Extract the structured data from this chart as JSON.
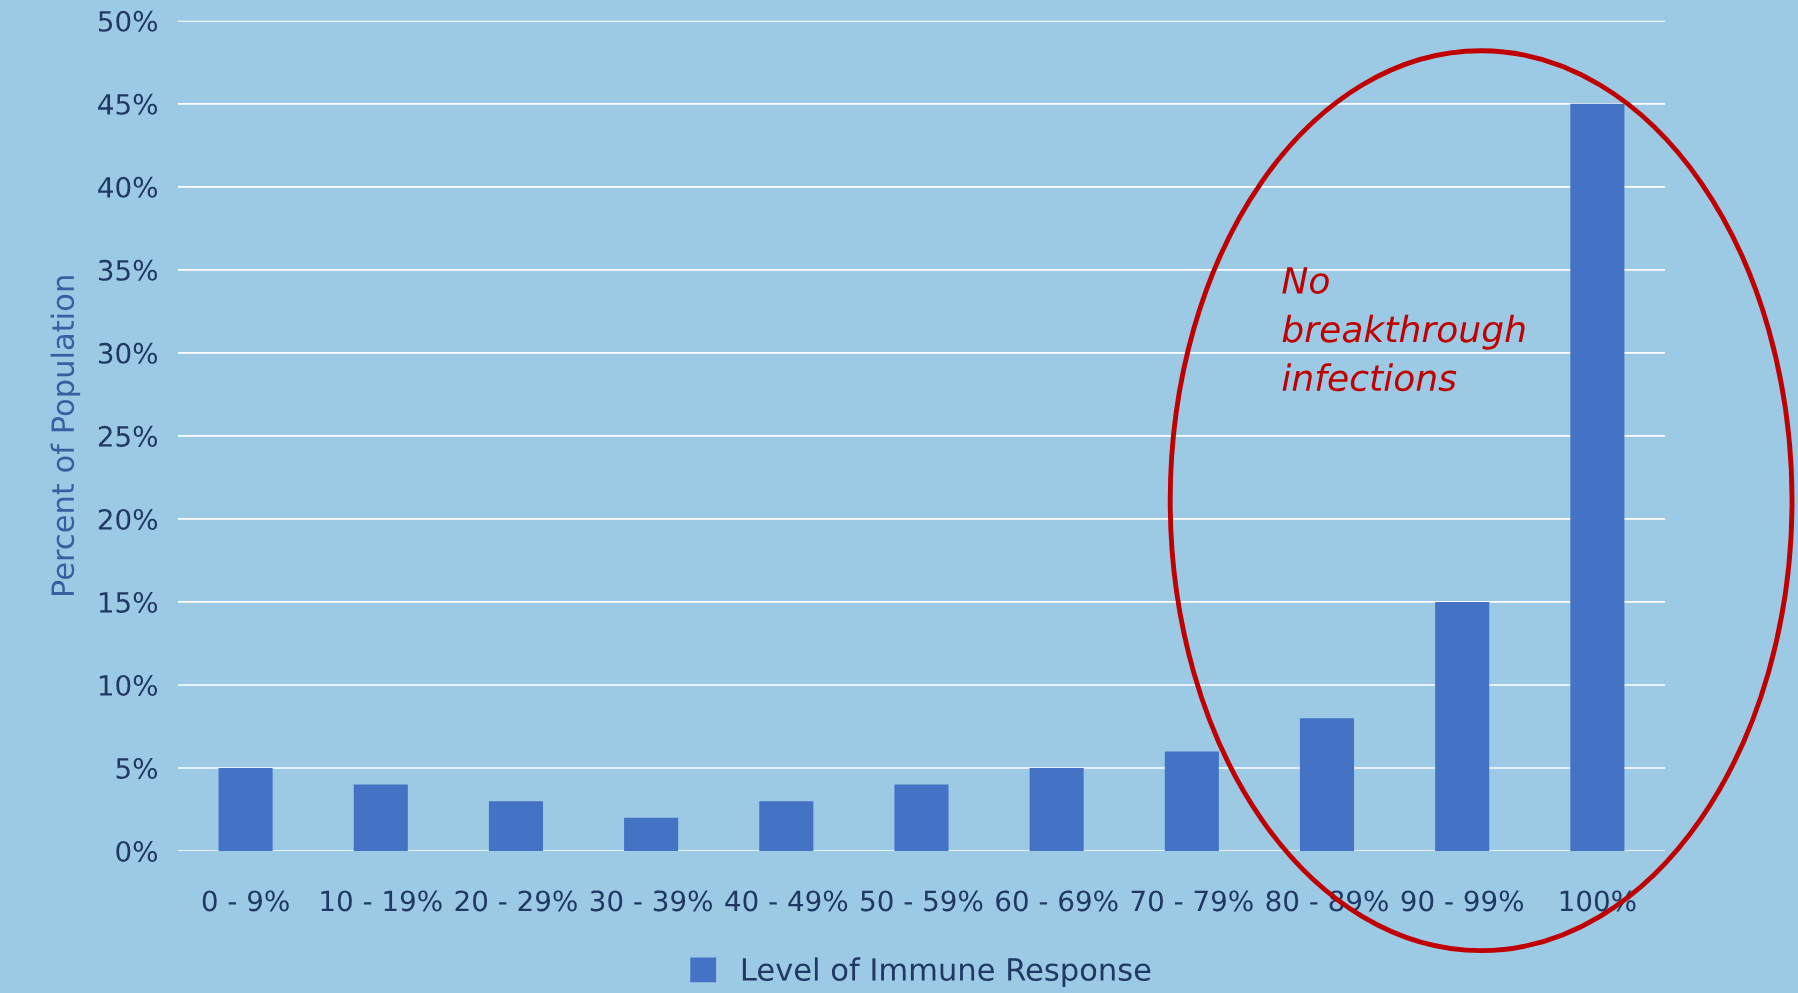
{
  "chart_data": {
    "type": "bar",
    "ylabel": "Percent of Population",
    "categories": [
      "0 - 9%",
      "10 - 19%",
      "20 - 29%",
      "30 - 39%",
      "40 - 49%",
      "50 - 59%",
      "60 - 69%",
      "70 - 79%",
      "80 - 89%",
      "90 - 99%",
      "100%"
    ],
    "series": [
      {
        "name": "Level of Immune Response",
        "color": "#4472c4",
        "values": [
          5,
          4,
          3,
          2,
          3,
          4,
          5,
          6,
          8,
          15,
          45
        ]
      }
    ],
    "ylim": [
      0,
      50
    ],
    "yticks": [
      {
        "value": 0,
        "label": "0%"
      },
      {
        "value": 5,
        "label": "5%"
      },
      {
        "value": 10,
        "label": "10%"
      },
      {
        "value": 15,
        "label": "15%"
      },
      {
        "value": 20,
        "label": "20%"
      },
      {
        "value": 25,
        "label": "25%"
      },
      {
        "value": 30,
        "label": "30%"
      },
      {
        "value": 35,
        "label": "35%"
      },
      {
        "value": 40,
        "label": "40%"
      },
      {
        "value": 45,
        "label": "45%"
      },
      {
        "value": 50,
        "label": "50%"
      }
    ],
    "grid": "y",
    "legend": "bottom",
    "annotations": [
      "No breakthrough infections"
    ]
  }
}
